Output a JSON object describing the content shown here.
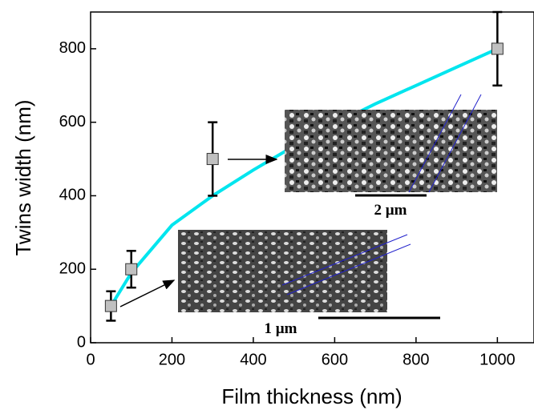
{
  "chart_data": {
    "type": "scatter",
    "x_label": "Film thickness (nm)",
    "y_label": "Twins width (nm)",
    "xlim": [
      0,
      1090
    ],
    "ylim": [
      0,
      900
    ],
    "xticks": [
      0,
      200,
      400,
      600,
      800,
      1000
    ],
    "yticks": [
      0,
      200,
      400,
      600,
      800
    ],
    "series": [
      {
        "color": "#c0c0c0",
        "x": [
          50,
          100,
          300,
          1000
        ],
        "values": [
          100,
          200,
          500,
          800
        ],
        "errors": [
          40,
          50,
          100,
          100
        ]
      }
    ],
    "fit": {
      "color": "#00e5ee",
      "x": [
        50,
        100,
        200,
        300,
        400,
        500,
        600,
        700,
        800,
        900,
        1000
      ],
      "values": [
        100,
        190,
        320,
        400,
        470,
        535,
        595,
        650,
        700,
        750,
        800
      ]
    },
    "annotations": [
      "2 µm",
      "1 µm"
    ]
  }
}
